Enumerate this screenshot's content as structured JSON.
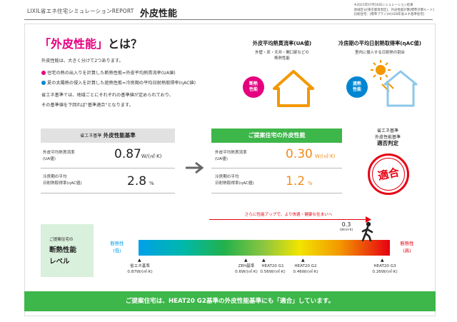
{
  "header": {
    "brand": "LIXIL省エネ住宅シミュレーションREPORT",
    "title": "外皮性能",
    "note_lines": [
      "※2021年07月16日シミュレーション結果",
      "地域区分[東京都目黒区]、外皮性能計算[標準計算ルート]",
      "比較住宅：[標準プラン]※[H28年省エネ基準住宅]"
    ]
  },
  "intro": {
    "heading_bracketed": "「外皮性能」",
    "heading_rest": "とは？",
    "lead": "外皮性能は、大きく分けて2つあります。",
    "bullets": [
      {
        "text": "住宅の熱の出入りを計算した断熱性能=外皮平均熱貫流率(UA値)",
        "color": "#e4007f"
      },
      {
        "text": "夏の太陽熱の侵入を計算した遮熱性能=冷房期の平均日射熱取得率(ηAC値)",
        "color": "#0086d1"
      }
    ],
    "body": [
      "省エネ基準では、地域ごとにそれぞれの基準値が定められており、",
      "その基準値を下回れば\"基準適合\"となります。"
    ]
  },
  "panels": {
    "ua": {
      "title": "外皮平均熱貫流率(UA値)",
      "sub": [
        "外壁・床・天井・開口部などの",
        "断熱性能"
      ],
      "badge": [
        "断熱",
        "性能"
      ],
      "badge_color": "#e4007f"
    },
    "eta": {
      "title": "冷房期の平均日射熱取得率(ηAC値)",
      "sub": [
        "室内に侵入する日射熱の割合"
      ],
      "badge": [
        "遮熱",
        "性能"
      ],
      "badge_color": "#0086d1"
    }
  },
  "standard": {
    "heading_prefix": "省エネ基準",
    "heading": "外皮性能基準",
    "rows": [
      {
        "label": [
          "外皮平均熱貫流率",
          "(UA値)"
        ],
        "value": "0.87",
        "unit": "W/(㎡·K)"
      },
      {
        "label": [
          "冷房期の平均",
          "日射熱取得率(ηAC値)"
        ],
        "value": "2.8",
        "unit": "%"
      }
    ]
  },
  "proposed": {
    "heading": "ご提案住宅の外皮性能",
    "rows": [
      {
        "label": [
          "外皮平均熱貫流率",
          "(UA値)"
        ],
        "value": "0.30",
        "unit": "W/(㎡·K)"
      },
      {
        "label": [
          "冷房期の平均",
          "日射熱取得率(ηAC値)"
        ],
        "value": "1.2",
        "unit": "%"
      }
    ]
  },
  "verdict": {
    "lines": [
      "省エネ基準",
      "外皮性能基準"
    ],
    "big": "適否判定",
    "stamp": "適合"
  },
  "level": {
    "box": [
      "ご提案住宅の",
      "断熱性能",
      "レベル"
    ],
    "arrow_text": "さらに性能アップで、より快適・健康な住まいへ",
    "current_value": "0.3",
    "current_unit": "(W/㎡·K)",
    "left_end": [
      "断熱性",
      "(低)"
    ],
    "right_end": [
      "断熱性",
      "(高)"
    ],
    "left_color": "#00a0e9",
    "right_color": "#e60012",
    "ticks": [
      {
        "name": [
          "省エネ基準",
          "0.87W/(㎡·K)"
        ]
      },
      {
        "name": [
          "ZEH基準",
          "0.6W/(㎡·K)"
        ]
      },
      {
        "name": [
          "HEAT20 G1",
          "0.56W/(㎡·K)"
        ]
      },
      {
        "name": [
          "HEAT20 G2",
          "0.46W/(㎡·K)"
        ]
      },
      {
        "name": [
          "HEAT20 G3",
          "0.26W/(㎡·K)"
        ]
      }
    ]
  },
  "banner": {
    "text": "ご提案住宅は、HEAT20 G2基準の外皮性能基準にも「適合」しています。"
  }
}
